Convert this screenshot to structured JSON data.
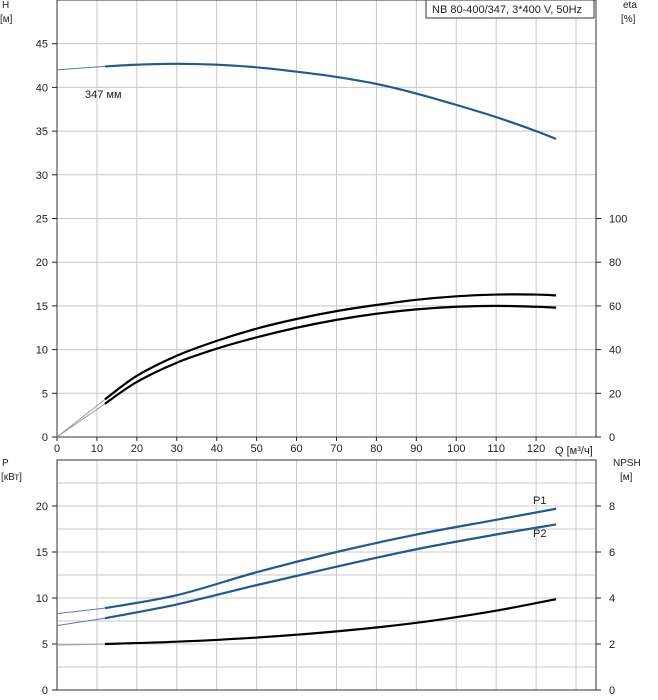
{
  "chart_data": [
    {
      "type": "line",
      "legend_box": "NB 80-400/347, 3*400 V, 50Hz",
      "y_left_label": [
        "H",
        "[м]"
      ],
      "y_right_label": [
        "eta",
        "[%]"
      ],
      "x_unit_label": "Q [м³/ч]",
      "xlim": [
        0,
        135
      ],
      "ylim": [
        0,
        50
      ],
      "y2lim": [
        0,
        200
      ],
      "x_ticks": [
        0,
        10,
        20,
        30,
        40,
        50,
        60,
        70,
        80,
        90,
        100,
        110,
        120
      ],
      "y_ticks": [
        0,
        5,
        10,
        15,
        20,
        25,
        30,
        35,
        40,
        45
      ],
      "y2_ticks": [
        0,
        20,
        40,
        60,
        80,
        100
      ],
      "grid": true,
      "series": [
        {
          "id": "head",
          "axis": "left",
          "color": "#1f5a96",
          "label": "347 мм",
          "x": [
            0,
            12,
            20,
            30,
            40,
            50,
            60,
            70,
            80,
            90,
            100,
            110,
            120,
            125
          ],
          "y": [
            42.0,
            42.4,
            42.6,
            42.7,
            42.6,
            42.3,
            41.8,
            41.2,
            40.4,
            39.3,
            38.0,
            36.6,
            35.0,
            34.1
          ]
        },
        {
          "id": "eta-upper",
          "axis": "right",
          "color": "#000000",
          "x": [
            0,
            12,
            20,
            30,
            40,
            50,
            60,
            70,
            80,
            90,
            100,
            110,
            120,
            125
          ],
          "y": [
            0,
            17.2,
            28.0,
            37.2,
            44.0,
            49.6,
            54.0,
            57.6,
            60.4,
            62.8,
            64.4,
            65.2,
            65.2,
            64.8
          ]
        },
        {
          "id": "eta-lower",
          "axis": "right",
          "color": "#000000",
          "x": [
            0,
            12,
            20,
            30,
            40,
            50,
            60,
            70,
            80,
            90,
            100,
            110,
            120,
            125
          ],
          "y": [
            0,
            15.2,
            25.2,
            34.0,
            40.4,
            45.6,
            50.0,
            53.6,
            56.4,
            58.4,
            59.6,
            60.0,
            59.6,
            59.2
          ]
        }
      ]
    },
    {
      "type": "line",
      "y_left_label": [
        "P",
        "[кВт]"
      ],
      "y_right_label": [
        "NPSH",
        "[м]"
      ],
      "xlim": [
        0,
        135
      ],
      "ylim": [
        0,
        25
      ],
      "y2lim": [
        0,
        10
      ],
      "y_ticks": [
        0,
        5,
        10,
        15,
        20
      ],
      "y2_ticks": [
        0,
        2,
        4,
        6,
        8
      ],
      "grid": true,
      "series": [
        {
          "id": "p1",
          "axis": "left",
          "name": "P1",
          "color": "#1f5a96",
          "x": [
            0,
            12,
            30,
            50,
            70,
            90,
            110,
            125
          ],
          "y": [
            8.3,
            8.9,
            10.3,
            12.8,
            15.0,
            16.9,
            18.5,
            19.7
          ]
        },
        {
          "id": "p2",
          "axis": "left",
          "name": "P2",
          "color": "#1f5a96",
          "x": [
            0,
            12,
            30,
            50,
            70,
            90,
            110,
            125
          ],
          "y": [
            7.0,
            7.8,
            9.3,
            11.4,
            13.4,
            15.3,
            16.9,
            18.0
          ]
        },
        {
          "id": "npsh",
          "axis": "right",
          "color": "#000000",
          "x": [
            0,
            12,
            30,
            50,
            70,
            90,
            110,
            125
          ],
          "y": [
            1.95,
            2.0,
            2.1,
            2.28,
            2.55,
            2.92,
            3.45,
            3.95
          ]
        }
      ]
    }
  ]
}
